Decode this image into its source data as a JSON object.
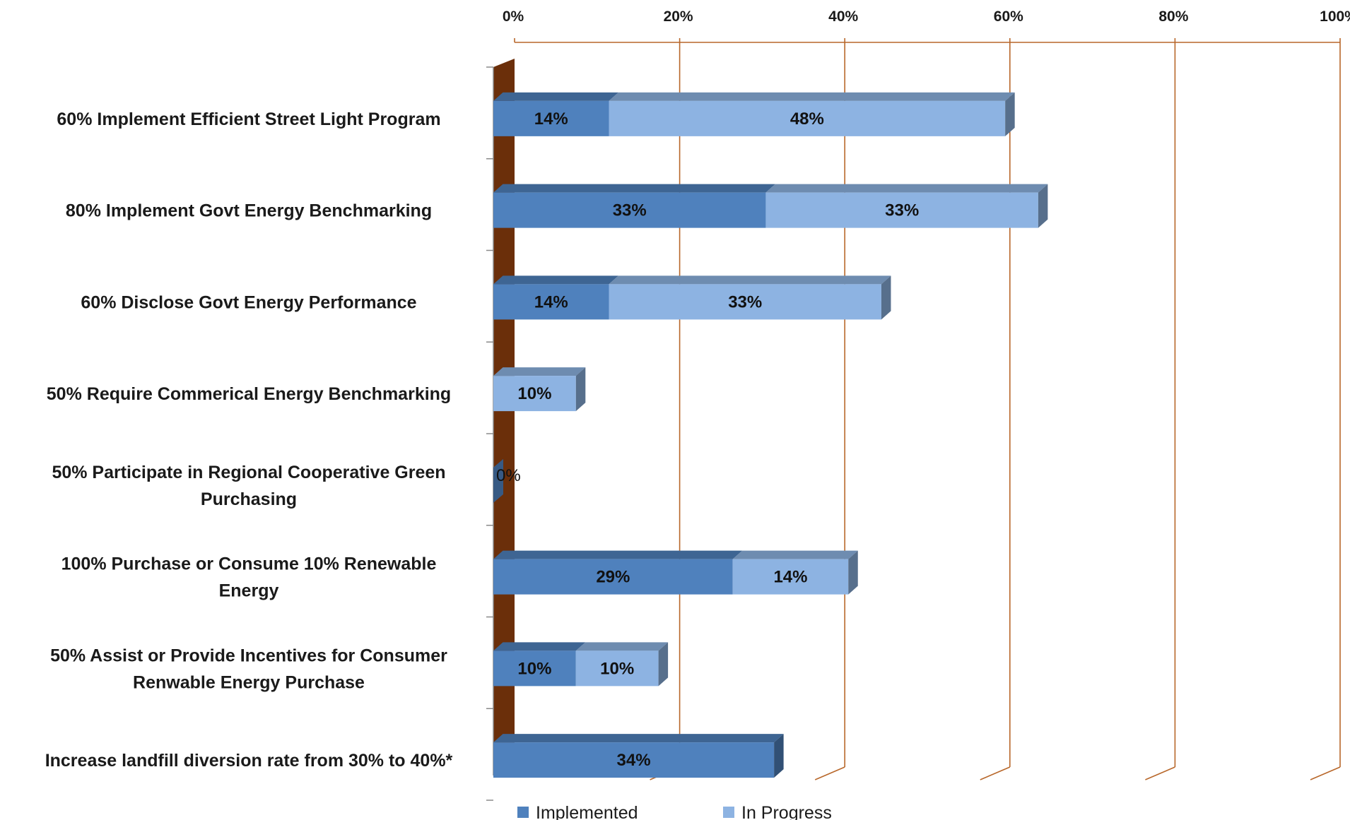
{
  "chart_data": {
    "type": "bar",
    "orientation": "horizontal",
    "stacked": true,
    "style": "3d",
    "categories": [
      "60% Implement Efficient Street Light Program",
      "80% Implement Govt Energy Benchmarking",
      "60% Disclose Govt Energy Performance",
      "50% Require Commerical Energy Benchmarking",
      "50% Participate in Regional Cooperative Green Purchasing",
      "100% Purchase or Consume 10% Renewable Energy",
      "50% Assist or Provide Incentives for Consumer Renwable Energy Purchase",
      "Increase landfill diversion rate from 30% to 40%*"
    ],
    "category_lines": [
      [
        "60% Implement Efficient Street Light Program"
      ],
      [
        "80% Implement Govt Energy Benchmarking"
      ],
      [
        "60% Disclose Govt Energy Performance"
      ],
      [
        "50% Require Commerical Energy Benchmarking"
      ],
      [
        "50% Participate in Regional Cooperative Green",
        "Purchasing"
      ],
      [
        "100% Purchase or Consume 10% Renewable",
        "Energy"
      ],
      [
        "50% Assist or Provide Incentives for Consumer",
        "Renwable Energy Purchase"
      ],
      [
        "Increase landfill diversion rate from 30% to 40%*"
      ]
    ],
    "series": [
      {
        "name": "Implemented",
        "color": "#4f81bd",
        "values": [
          14,
          33,
          14,
          0,
          0,
          29,
          10,
          34
        ],
        "labels": [
          "14%",
          "33%",
          "14%",
          "",
          "0%",
          "29%",
          "10%",
          "34%"
        ]
      },
      {
        "name": "In Progress",
        "color": "#8db3e2",
        "values": [
          48,
          33,
          33,
          10,
          0,
          14,
          10,
          0
        ],
        "labels": [
          "48%",
          "33%",
          "33%",
          "10%",
          "",
          "14%",
          "10%",
          ""
        ]
      }
    ],
    "xlim": [
      0,
      100
    ],
    "x_ticks": [
      "0%",
      "20%",
      "40%",
      "60%",
      "80%",
      "100%"
    ],
    "x_axis_position": "top",
    "gridlines": true,
    "legend_position": "bottom",
    "colors": {
      "wall": "#6b2f0a",
      "gridline": "#b8672a"
    }
  }
}
